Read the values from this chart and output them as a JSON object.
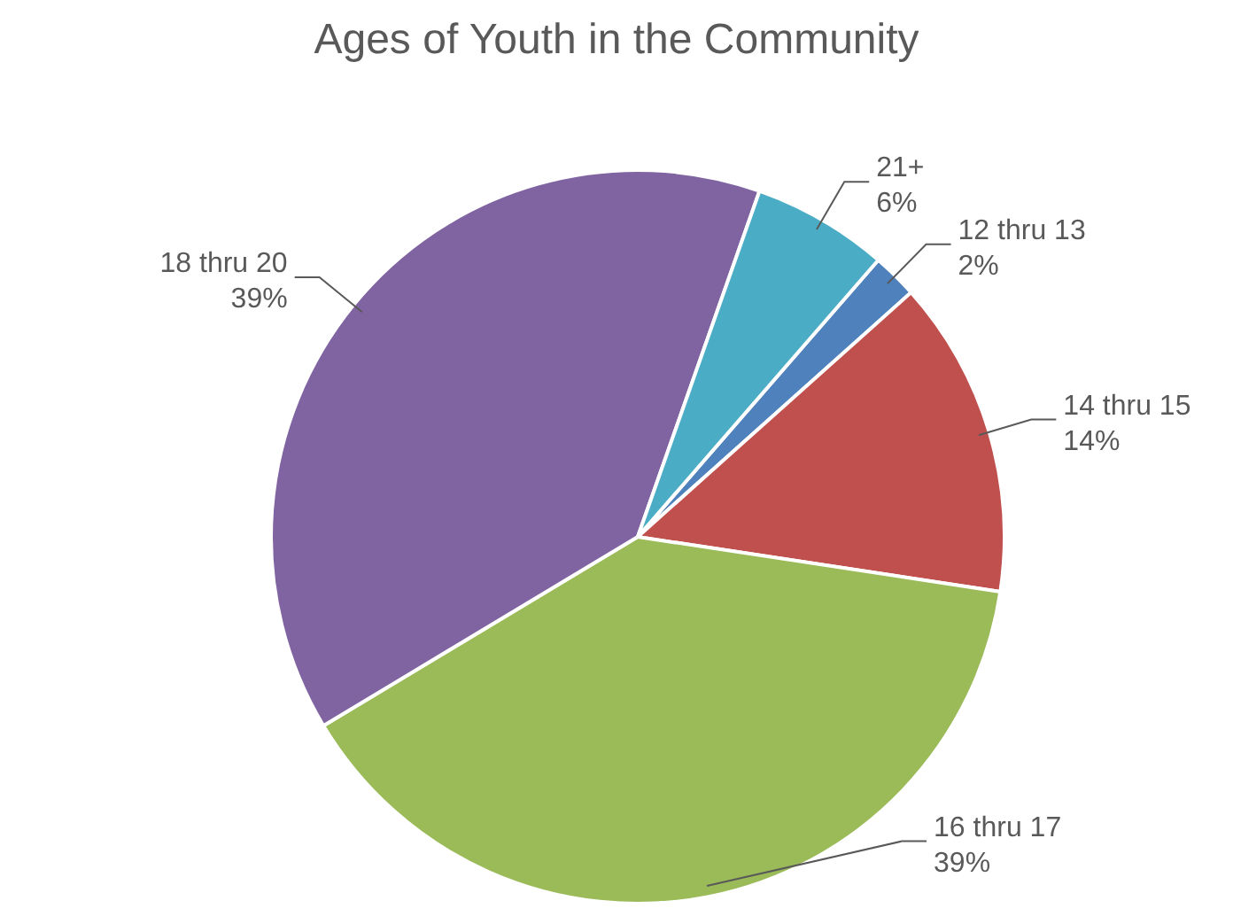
{
  "chart_data": {
    "type": "pie",
    "title": "Ages of Youth in the Community",
    "categories": [
      "12 thru 13",
      "14 thru 15",
      "16 thru 17",
      "18 thru 20",
      "21+"
    ],
    "values": [
      2,
      14,
      39,
      39,
      6
    ],
    "value_labels": [
      "2%",
      "14%",
      "39%",
      "39%",
      "6%"
    ],
    "colors": [
      "#4f81bd",
      "#c0504d",
      "#9bbb59",
      "#8064a2",
      "#4bacc6"
    ]
  }
}
